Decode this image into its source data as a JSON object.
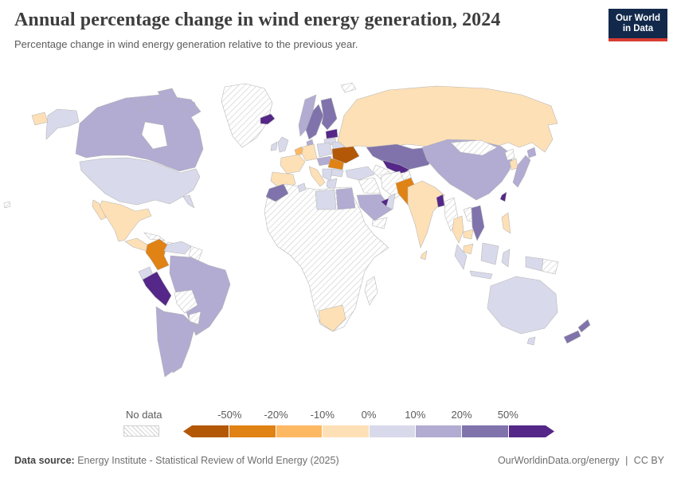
{
  "header": {
    "title": "Annual percentage change in wind energy generation, 2024",
    "subtitle": "Percentage change in wind energy generation relative to the previous year.",
    "logo_line1": "Our World",
    "logo_line2": "in Data"
  },
  "legend": {
    "no_data_label": "No data",
    "tick_labels": [
      "-50%",
      "-20%",
      "-10%",
      "0%",
      "10%",
      "20%",
      "50%"
    ],
    "buckets": [
      {
        "key": "lt_n50",
        "label": "Less than -50%",
        "color": "#b35806"
      },
      {
        "key": "n50_n20",
        "label": "-50% to -20%",
        "color": "#e08214"
      },
      {
        "key": "n20_n10",
        "label": "-20% to -10%",
        "color": "#fdb863"
      },
      {
        "key": "n10_0",
        "label": "-10% to 0%",
        "color": "#fee0b6"
      },
      {
        "key": "p0_10",
        "label": "0% to 10%",
        "color": "#d8daeb"
      },
      {
        "key": "p10_20",
        "label": "10% to 20%",
        "color": "#b2abd2"
      },
      {
        "key": "p20_50",
        "label": "20% to 50%",
        "color": "#8073ac"
      },
      {
        "key": "gt_50",
        "label": "More than 50%",
        "color": "#542788"
      }
    ]
  },
  "footer": {
    "source_label": "Data source:",
    "source_text": "Energy Institute - Statistical Review of World Energy (2025)",
    "site_url": "OurWorldinData.org/energy",
    "divider": "|",
    "license": "CC BY"
  },
  "chart_data": {
    "type": "choropleth_map",
    "title": "Annual percentage change in wind energy generation, 2024",
    "unit": "% change in wind energy generation vs previous year",
    "bin_edges_percent": [
      -50,
      -20,
      -10,
      0,
      10,
      20,
      50
    ],
    "legend_position": "bottom",
    "no_data_pattern": "diagonal-hatch",
    "regions": {
      "greenland": {
        "label": "Greenland",
        "bucket": "no_data"
      },
      "svalbard": {
        "label": "Svalbard",
        "bucket": "no_data"
      },
      "iceland": {
        "label": "Iceland",
        "bucket": "gt_50"
      },
      "canada": {
        "label": "Canada",
        "bucket": "p10_20"
      },
      "usa": {
        "label": "United States",
        "bucket": "p0_10"
      },
      "mexico": {
        "label": "Mexico",
        "bucket": "n10_0"
      },
      "central_america": {
        "label": "Central America",
        "bucket": "n10_0"
      },
      "cuba": {
        "label": "Cuba",
        "bucket": "no_data"
      },
      "hispaniola": {
        "label": "Hispaniola",
        "bucket": "no_data"
      },
      "colombia": {
        "label": "Colombia",
        "bucket": "n50_n20"
      },
      "venezuela": {
        "label": "Venezuela",
        "bucket": "p0_10"
      },
      "guyanas": {
        "label": "Guyanas",
        "bucket": "no_data"
      },
      "ecuador": {
        "label": "Ecuador",
        "bucket": "p0_10"
      },
      "peru": {
        "label": "Peru",
        "bucket": "gt_50"
      },
      "brazil": {
        "label": "Brazil",
        "bucket": "p10_20"
      },
      "bolivia": {
        "label": "Bolivia",
        "bucket": "no_data"
      },
      "paraguay": {
        "label": "Paraguay",
        "bucket": "no_data"
      },
      "chile": {
        "label": "Chile",
        "bucket": "p10_20"
      },
      "argentina": {
        "label": "Argentina",
        "bucket": "p10_20"
      },
      "uruguay": {
        "label": "Uruguay",
        "bucket": "p10_20"
      },
      "ireland": {
        "label": "Ireland",
        "bucket": "p0_10"
      },
      "uk": {
        "label": "United Kingdom",
        "bucket": "p0_10"
      },
      "norway": {
        "label": "Norway",
        "bucket": "p10_20"
      },
      "sweden": {
        "label": "Sweden",
        "bucket": "p20_50"
      },
      "finland": {
        "label": "Finland",
        "bucket": "p20_50"
      },
      "baltics": {
        "label": "Estonia and Latvia",
        "bucket": "gt_50"
      },
      "lithuania": {
        "label": "Lithuania",
        "bucket": "p0_10"
      },
      "denmark": {
        "label": "Denmark",
        "bucket": "p10_20"
      },
      "benelux": {
        "label": "Belgium and Netherlands",
        "bucket": "n20_n10"
      },
      "germany": {
        "label": "Germany",
        "bucket": "n10_0"
      },
      "poland": {
        "label": "Poland",
        "bucket": "p0_10"
      },
      "belarus": {
        "label": "Belarus",
        "bucket": "p0_10"
      },
      "france": {
        "label": "France",
        "bucket": "n10_0"
      },
      "spain": {
        "label": "Spain and Portugal",
        "bucket": "n10_0"
      },
      "czech_austria": {
        "label": "Czechia and Austria",
        "bucket": "p10_20"
      },
      "italy": {
        "label": "Italy",
        "bucket": "n10_0"
      },
      "hungary_romania": {
        "label": "Hungary and Romania",
        "bucket": "n50_n20"
      },
      "ukraine": {
        "label": "Ukraine",
        "bucket": "lt_n50"
      },
      "balkans": {
        "label": "Balkans",
        "bucket": "p0_10"
      },
      "bulgaria": {
        "label": "Bulgaria",
        "bucket": "p0_10"
      },
      "greece": {
        "label": "Greece",
        "bucket": "p0_10"
      },
      "turkey": {
        "label": "Turkey",
        "bucket": "p0_10"
      },
      "syria_iraq": {
        "label": "Syria and Iraq",
        "bucket": "no_data"
      },
      "iran": {
        "label": "Iran",
        "bucket": "no_data"
      },
      "saudi_arabia": {
        "label": "Saudi Arabia",
        "bucket": "p10_20"
      },
      "uae": {
        "label": "United Arab Emirates",
        "bucket": "gt_50"
      },
      "oman": {
        "label": "Oman",
        "bucket": "p0_10"
      },
      "yemen": {
        "label": "Yemen",
        "bucket": "no_data"
      },
      "russia": {
        "label": "Russia",
        "bucket": "n10_0"
      },
      "kazakhstan": {
        "label": "Kazakhstan",
        "bucket": "p20_50"
      },
      "uzbekistan": {
        "label": "Uzbekistan",
        "bucket": "gt_50"
      },
      "turkmenistan": {
        "label": "Turkmenistan",
        "bucket": "no_data"
      },
      "afghanistan": {
        "label": "Afghanistan",
        "bucket": "no_data"
      },
      "pakistan": {
        "label": "Pakistan",
        "bucket": "n50_n20"
      },
      "india": {
        "label": "India",
        "bucket": "n10_0"
      },
      "sri_lanka": {
        "label": "Sri Lanka",
        "bucket": "n10_0"
      },
      "bangladesh": {
        "label": "Bangladesh",
        "bucket": "gt_50"
      },
      "myanmar": {
        "label": "Myanmar",
        "bucket": "no_data"
      },
      "thailand": {
        "label": "Thailand",
        "bucket": "n10_0"
      },
      "laos": {
        "label": "Laos",
        "bucket": "no_data"
      },
      "vietnam": {
        "label": "Vietnam",
        "bucket": "p20_50"
      },
      "cambodia": {
        "label": "Cambodia",
        "bucket": "n10_0"
      },
      "malaysia": {
        "label": "Malaysia",
        "bucket": "n10_0"
      },
      "china": {
        "label": "China",
        "bucket": "p10_20"
      },
      "mongolia": {
        "label": "Mongolia",
        "bucket": "no_data"
      },
      "north_korea": {
        "label": "North Korea",
        "bucket": "no_data"
      },
      "south_korea": {
        "label": "South Korea",
        "bucket": "n10_0"
      },
      "taiwan": {
        "label": "Taiwan",
        "bucket": "gt_50"
      },
      "japan": {
        "label": "Japan",
        "bucket": "p10_20"
      },
      "philippines": {
        "label": "Philippines",
        "bucket": "n10_0"
      },
      "indonesia": {
        "label": "Indonesia",
        "bucket": "p0_10"
      },
      "png": {
        "label": "Papua New Guinea",
        "bucket": "no_data"
      },
      "australia": {
        "label": "Australia",
        "bucket": "p0_10"
      },
      "new_zealand": {
        "label": "New Zealand",
        "bucket": "p20_50"
      },
      "africa_other": {
        "label": "Africa (most countries)",
        "bucket": "no_data"
      },
      "morocco": {
        "label": "Morocco",
        "bucket": "p20_50"
      },
      "tunisia": {
        "label": "Tunisia",
        "bucket": "p0_10"
      },
      "libya": {
        "label": "Libya",
        "bucket": "p0_10"
      },
      "egypt": {
        "label": "Egypt",
        "bucket": "p10_20"
      },
      "south_africa": {
        "label": "South Africa",
        "bucket": "n10_0"
      },
      "madagascar": {
        "label": "Madagascar",
        "bucket": "no_data"
      },
      "pacific_islands": {
        "label": "Pacific islands",
        "bucket": "no_data"
      }
    }
  }
}
